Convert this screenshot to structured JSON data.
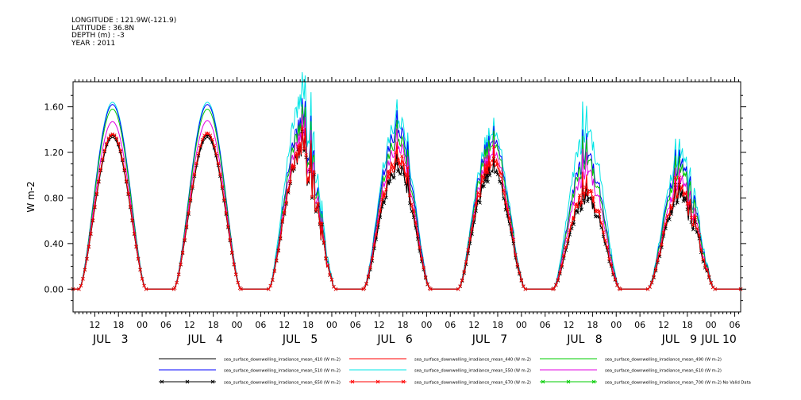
{
  "header": {
    "lines": [
      "LONGITUDE : 121.9W(-121.9)",
      "LATITUDE : 36.8N",
      "DEPTH (m) : -3",
      "YEAR : 2011"
    ]
  },
  "chart_data": {
    "type": "line",
    "ylabel": "W m-2",
    "ylim": [
      -0.2,
      1.82
    ],
    "yticks": [
      0.0,
      0.4,
      0.8,
      1.2,
      1.6
    ],
    "ytick_labels": [
      "0.00",
      "0.40",
      "0.80",
      "1.20",
      "1.60"
    ],
    "x_hour_ticks": [
      {
        "hour": 12,
        "label": "12"
      },
      {
        "hour": 18,
        "label": "18"
      },
      {
        "hour": 24,
        "label": "00"
      },
      {
        "hour": 30,
        "label": "06"
      },
      {
        "hour": 36,
        "label": "12"
      },
      {
        "hour": 42,
        "label": "18"
      },
      {
        "hour": 48,
        "label": "00"
      },
      {
        "hour": 54,
        "label": "06"
      },
      {
        "hour": 60,
        "label": "12"
      },
      {
        "hour": 66,
        "label": "18"
      },
      {
        "hour": 72,
        "label": "00"
      },
      {
        "hour": 78,
        "label": "06"
      },
      {
        "hour": 84,
        "label": "12"
      },
      {
        "hour": 90,
        "label": "18"
      },
      {
        "hour": 96,
        "label": "00"
      },
      {
        "hour": 102,
        "label": "06"
      },
      {
        "hour": 108,
        "label": "12"
      },
      {
        "hour": 114,
        "label": "18"
      },
      {
        "hour": 120,
        "label": "00"
      },
      {
        "hour": 126,
        "label": "06"
      },
      {
        "hour": 132,
        "label": "12"
      },
      {
        "hour": 138,
        "label": "18"
      },
      {
        "hour": 144,
        "label": "00"
      },
      {
        "hour": 150,
        "label": "06"
      },
      {
        "hour": 156,
        "label": "12"
      },
      {
        "hour": 162,
        "label": "18"
      },
      {
        "hour": 168,
        "label": "00"
      },
      {
        "hour": 174,
        "label": "06"
      }
    ],
    "x_day_labels": [
      {
        "hour": 16,
        "label": "JUL   3"
      },
      {
        "hour": 40,
        "label": "JUL   4"
      },
      {
        "hour": 64,
        "label": "JUL   5"
      },
      {
        "hour": 88,
        "label": "JUL   6"
      },
      {
        "hour": 112,
        "label": "JUL   7"
      },
      {
        "hour": 136,
        "label": "JUL   8"
      },
      {
        "hour": 160,
        "label": "JUL   9"
      },
      {
        "hour": 170,
        "label": "JUL 10"
      }
    ],
    "xlim_hours": [
      6.5,
      175.5
    ],
    "day_peaks": [
      {
        "center": 16.5,
        "half_width": 8.5,
        "peaks": {
          "mean_410": 1.33,
          "mean_440": 1.36,
          "mean_490": 1.58,
          "mean_510": 1.62,
          "mean_550": 1.64,
          "mean_610": 1.47,
          "mean_650": 1.35,
          "mean_670": 1.36
        }
      },
      {
        "center": 40.5,
        "half_width": 8.5,
        "peaks": {
          "mean_410": 1.33,
          "mean_440": 1.36,
          "mean_490": 1.58,
          "mean_510": 1.62,
          "mean_550": 1.64,
          "mean_610": 1.48,
          "mean_650": 1.35,
          "mean_670": 1.37
        }
      },
      {
        "center": 64.5,
        "half_width": 8.5,
        "peaks": {
          "mean_410": 1.3,
          "mean_440": 1.33,
          "mean_490": 1.5,
          "mean_510": 1.55,
          "mean_550": 1.76,
          "mean_610": 1.42,
          "mean_650": 1.28,
          "mean_670": 1.3
        }
      },
      {
        "center": 88.5,
        "half_width": 8.5,
        "peaks": {
          "mean_410": 1.12,
          "mean_440": 1.18,
          "mean_490": 1.4,
          "mean_510": 1.48,
          "mean_550": 1.57,
          "mean_610": 1.33,
          "mean_650": 1.12,
          "mean_670": 1.22
        }
      },
      {
        "center": 112.5,
        "half_width": 8.5,
        "peaks": {
          "mean_410": 1.12,
          "mean_440": 1.18,
          "mean_490": 1.36,
          "mean_510": 1.4,
          "mean_550": 1.47,
          "mean_610": 1.28,
          "mean_650": 1.12,
          "mean_670": 1.22
        }
      },
      {
        "center": 136.5,
        "half_width": 8.5,
        "peaks": {
          "mean_410": 0.85,
          "mean_440": 0.9,
          "mean_490": 1.2,
          "mean_510": 1.25,
          "mean_550": 1.47,
          "mean_610": 1.1,
          "mean_650": 0.85,
          "mean_670": 0.92
        }
      },
      {
        "center": 160.5,
        "half_width": 8.5,
        "peaks": {
          "mean_410": 0.88,
          "mean_440": 0.92,
          "mean_490": 1.1,
          "mean_510": 1.15,
          "mean_550": 1.24,
          "mean_610": 1.0,
          "mean_650": 0.86,
          "mean_670": 0.92
        }
      }
    ],
    "series": [
      {
        "key": "mean_410",
        "name": "sea_surface_downwelling_irradiance_mean_410 (W m-2)",
        "color": "#000000",
        "marker": "none"
      },
      {
        "key": "mean_440",
        "name": "sea_surface_downwelling_irradiance_mean_440 (W m-2)",
        "color": "#ff0000",
        "marker": "none"
      },
      {
        "key": "mean_490",
        "name": "sea_surface_downwelling_irradiance_mean_490 (W m-2)",
        "color": "#00cc00",
        "marker": "none"
      },
      {
        "key": "mean_510",
        "name": "sea_surface_downwelling_irradiance_mean_510 (W m-2)",
        "color": "#0000ff",
        "marker": "none"
      },
      {
        "key": "mean_550",
        "name": "sea_surface_downwelling_irradiance_mean_550 (W m-2)",
        "color": "#00e5e5",
        "marker": "none"
      },
      {
        "key": "mean_610",
        "name": "sea_surface_downwelling_irradiance_mean_610 (W m-2)",
        "color": "#e000e0",
        "marker": "none"
      },
      {
        "key": "mean_650",
        "name": "sea_surface_downwelling_irradiance_mean_650 (W m-2)",
        "color": "#000000",
        "marker": "x"
      },
      {
        "key": "mean_670",
        "name": "sea_surface_downwelling_irradiance_mean_670 (W m-2)",
        "color": "#ff0000",
        "marker": "x"
      },
      {
        "key": "mean_700",
        "name": "sea_surface_downwelling_irradiance_mean_700 (W m-2) No Valid Data",
        "color": "#00cc00",
        "marker": "x"
      }
    ]
  }
}
